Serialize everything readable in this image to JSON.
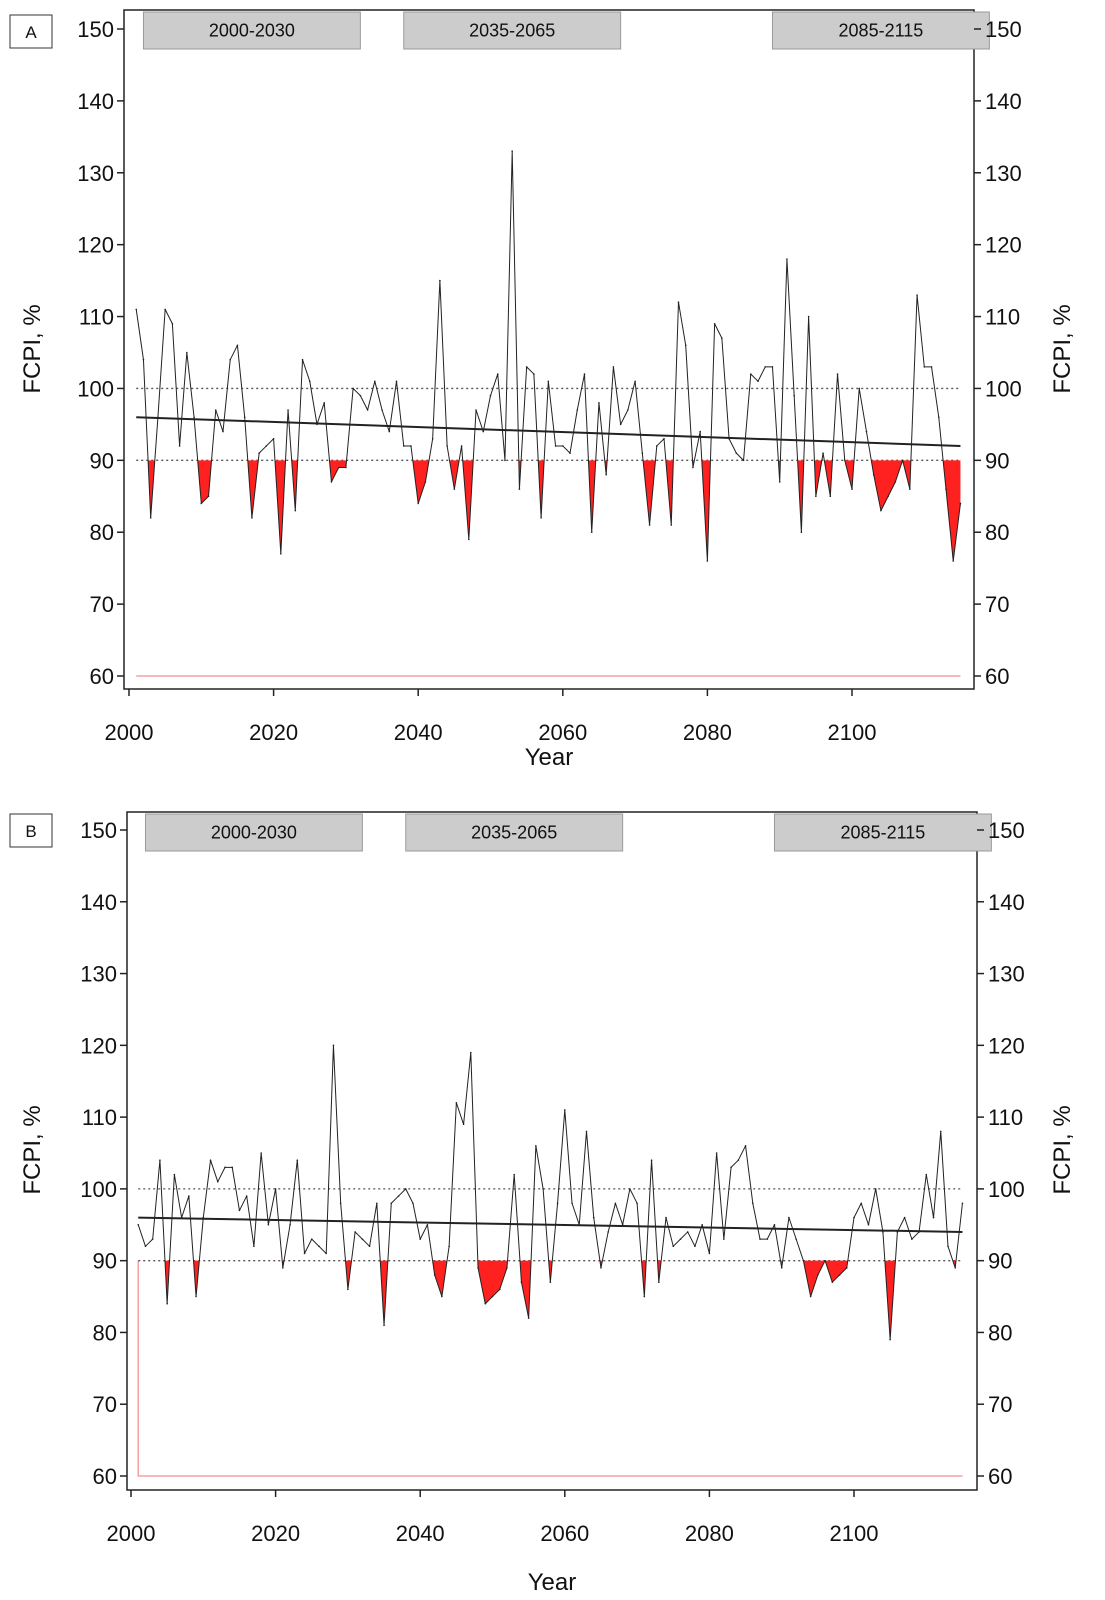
{
  "chart_data": [
    {
      "panel": "A",
      "type": "line",
      "xlabel": "Year",
      "ylabel": "FCPI, %",
      "ylabel_right": "FCPI, %",
      "xlim": [
        2001,
        2115
      ],
      "ylim": [
        60,
        150
      ],
      "x_ticks": [
        2000,
        2020,
        2040,
        2060,
        2080,
        2100
      ],
      "y_ticks": [
        60,
        70,
        80,
        90,
        100,
        110,
        120,
        130,
        140,
        150
      ],
      "periods": [
        {
          "label": "2000-2030",
          "start": 2002,
          "end": 2032
        },
        {
          "label": "2035-2065",
          "start": 2038,
          "end": 2068
        },
        {
          "label": "2085-2115",
          "start": 2089,
          "end": 2119
        }
      ],
      "reference_lines": [
        100,
        90
      ],
      "red_baseline": 60,
      "colors": {
        "series": "#222222",
        "trend": "#222222",
        "below_threshold": "#ff2020",
        "baseline": "#f4a0a0",
        "period_box": "#cccccc"
      },
      "series": [
        {
          "x": [
            2001,
            2002,
            2003,
            2004,
            2005,
            2006,
            2007,
            2008,
            2009,
            2010,
            2011,
            2012,
            2013,
            2014,
            2015,
            2016,
            2017,
            2018,
            2019,
            2020,
            2021,
            2022,
            2023,
            2024,
            2025,
            2026,
            2027,
            2028,
            2029,
            2030,
            2031,
            2032,
            2033,
            2034,
            2035,
            2036,
            2037,
            2038,
            2039,
            2040,
            2041,
            2042,
            2043,
            2044,
            2045,
            2046,
            2047,
            2048,
            2049,
            2050,
            2051,
            2052,
            2053,
            2054,
            2055,
            2056,
            2057,
            2058,
            2059,
            2060,
            2061,
            2062,
            2063,
            2064,
            2065,
            2066,
            2067,
            2068,
            2069,
            2070,
            2071,
            2072,
            2073,
            2074,
            2075,
            2076,
            2077,
            2078,
            2079,
            2080,
            2081,
            2082,
            2083,
            2084,
            2085,
            2086,
            2087,
            2088,
            2089,
            2090,
            2091,
            2092,
            2093,
            2094,
            2095,
            2096,
            2097,
            2098,
            2099,
            2100,
            2101,
            2102,
            2103,
            2104,
            2105,
            2106,
            2107,
            2108,
            2109,
            2110,
            2111,
            2112,
            2113,
            2114,
            2115
          ],
          "y": [
            111,
            104,
            82,
            96,
            111,
            109,
            92,
            105,
            96,
            84,
            85,
            97,
            94,
            104,
            106,
            96,
            82,
            91,
            92,
            93,
            77,
            97,
            83,
            104,
            101,
            95,
            98,
            87,
            89,
            89,
            100,
            99,
            97,
            101,
            97,
            94,
            101,
            92,
            92,
            84,
            87,
            93,
            115,
            92,
            86,
            92,
            79,
            97,
            94,
            99,
            102,
            90,
            133,
            86,
            103,
            102,
            82,
            101,
            92,
            92,
            91,
            97,
            102,
            80,
            98,
            88,
            103,
            95,
            97,
            101,
            91,
            81,
            92,
            93,
            81,
            112,
            106,
            89,
            94,
            76,
            109,
            107,
            93,
            91,
            90,
            102,
            101,
            103,
            103,
            87,
            118,
            99,
            80,
            110,
            85,
            91,
            85,
            102,
            90,
            86,
            100,
            94,
            88,
            83,
            85,
            87,
            90,
            86,
            113,
            103,
            103,
            96,
            86,
            76,
            84
          ]
        },
        {
          "name": "trend",
          "x": [
            2001,
            2115
          ],
          "y": [
            96,
            92
          ]
        }
      ]
    },
    {
      "panel": "B",
      "type": "line",
      "xlabel": "Year",
      "ylabel": "FCPI, %",
      "ylabel_right": "FCPI, %",
      "xlim": [
        2001,
        2115
      ],
      "ylim": [
        60,
        150
      ],
      "x_ticks": [
        2000,
        2020,
        2040,
        2060,
        2080,
        2100
      ],
      "y_ticks": [
        60,
        70,
        80,
        90,
        100,
        110,
        120,
        130,
        140,
        150
      ],
      "periods": [
        {
          "label": "2000-2030",
          "start": 2002,
          "end": 2032
        },
        {
          "label": "2035-2065",
          "start": 2038,
          "end": 2068
        },
        {
          "label": "2085-2115",
          "start": 2089,
          "end": 2119
        }
      ],
      "reference_lines": [
        100,
        90
      ],
      "red_baseline": 60,
      "colors": {
        "series": "#222222",
        "trend": "#222222",
        "below_threshold": "#ff2020",
        "baseline": "#f4a0a0",
        "period_box": "#cccccc"
      },
      "series": [
        {
          "x": [
            2001,
            2002,
            2003,
            2004,
            2005,
            2006,
            2007,
            2008,
            2009,
            2010,
            2011,
            2012,
            2013,
            2014,
            2015,
            2016,
            2017,
            2018,
            2019,
            2020,
            2021,
            2022,
            2023,
            2024,
            2025,
            2026,
            2027,
            2028,
            2029,
            2030,
            2031,
            2032,
            2033,
            2034,
            2035,
            2036,
            2037,
            2038,
            2039,
            2040,
            2041,
            2042,
            2043,
            2044,
            2045,
            2046,
            2047,
            2048,
            2049,
            2050,
            2051,
            2052,
            2053,
            2054,
            2055,
            2056,
            2057,
            2058,
            2059,
            2060,
            2061,
            2062,
            2063,
            2064,
            2065,
            2066,
            2067,
            2068,
            2069,
            2070,
            2071,
            2072,
            2073,
            2074,
            2075,
            2076,
            2077,
            2078,
            2079,
            2080,
            2081,
            2082,
            2083,
            2084,
            2085,
            2086,
            2087,
            2088,
            2089,
            2090,
            2091,
            2092,
            2093,
            2094,
            2095,
            2096,
            2097,
            2098,
            2099,
            2100,
            2101,
            2102,
            2103,
            2104,
            2105,
            2106,
            2107,
            2108,
            2109,
            2110,
            2111,
            2112,
            2113,
            2114,
            2115
          ],
          "y": [
            95,
            92,
            93,
            104,
            84,
            102,
            96,
            99,
            85,
            96,
            104,
            101,
            103,
            103,
            97,
            99,
            92,
            105,
            95,
            100,
            89,
            95,
            104,
            91,
            93,
            92,
            91,
            120,
            98,
            86,
            94,
            93,
            92,
            98,
            81,
            98,
            99,
            100,
            98,
            93,
            95,
            88,
            85,
            92,
            112,
            109,
            119,
            89,
            84,
            85,
            86,
            89,
            102,
            87,
            82,
            106,
            100,
            87,
            98,
            111,
            98,
            95,
            108,
            96,
            89,
            94,
            98,
            95,
            100,
            98,
            85,
            104,
            87,
            96,
            92,
            93,
            94,
            92,
            95,
            91,
            105,
            93,
            103,
            104,
            106,
            98,
            93,
            93,
            95,
            89,
            96,
            93,
            90,
            85,
            88,
            90,
            87,
            88,
            89,
            96,
            98,
            95,
            100,
            94,
            79,
            94,
            96,
            93,
            94,
            102,
            96,
            108,
            92,
            89,
            98
          ]
        },
        {
          "name": "trend",
          "x": [
            2001,
            2115
          ],
          "y": [
            96,
            94
          ]
        }
      ]
    }
  ]
}
